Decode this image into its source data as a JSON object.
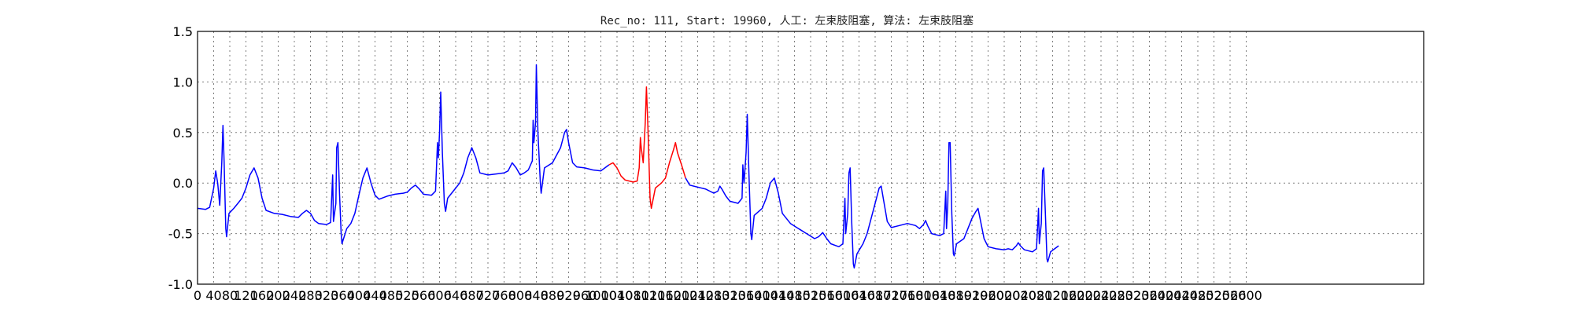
{
  "chart_data": {
    "type": "line",
    "title": "Rec_no: 111, Start: 19960, 人工: 左束肢阻塞, 算法: 左束肢阻塞",
    "xlabel": "",
    "ylabel": "",
    "xlim": [
      0,
      3040
    ],
    "ylim": [
      -1.0,
      1.5
    ],
    "grid": true,
    "x_tick_labels": [
      "0",
      "40",
      "80",
      "120",
      "160",
      "200",
      "240",
      "280",
      "320",
      "360",
      "400",
      "440",
      "480",
      "520",
      "560",
      "600",
      "640",
      "680",
      "720",
      "760",
      "800",
      "840",
      "880",
      "920",
      "960",
      "1000",
      "1040",
      "1080",
      "1120",
      "1160",
      "1200",
      "1240",
      "1280",
      "1320",
      "1360",
      "1400",
      "1440",
      "1480",
      "1520",
      "1560",
      "1600",
      "1640",
      "1680",
      "1720",
      "1760",
      "1800",
      "1840",
      "1880",
      "1920",
      "1960",
      "2000",
      "2040",
      "2080",
      "2120",
      "2160",
      "2200",
      "2240",
      "2280",
      "2320",
      "2360",
      "2400",
      "2440",
      "2480",
      "2520",
      "2560",
      "2600"
    ],
    "y_tick_labels": [
      "-1.0",
      "-0.5",
      "0.0",
      "0.5",
      "1.0",
      "1.5"
    ],
    "y_ticks": [
      -1.0,
      -0.5,
      0.0,
      0.5,
      1.0,
      1.5
    ],
    "series": [
      {
        "color": "#0000ff",
        "points": [
          [
            0,
            -0.25
          ],
          [
            20,
            -0.26
          ],
          [
            30,
            -0.24
          ],
          [
            40,
            -0.05
          ],
          [
            45,
            0.12
          ],
          [
            50,
            0.0
          ],
          [
            55,
            -0.22
          ],
          [
            60,
            0.2
          ],
          [
            63,
            0.57
          ],
          [
            66,
            0.2
          ],
          [
            70,
            -0.45
          ],
          [
            72,
            -0.53
          ],
          [
            78,
            -0.3
          ],
          [
            90,
            -0.25
          ],
          [
            100,
            -0.2
          ],
          [
            110,
            -0.15
          ],
          [
            120,
            -0.05
          ],
          [
            130,
            0.08
          ],
          [
            140,
            0.15
          ],
          [
            150,
            0.05
          ],
          [
            160,
            -0.15
          ],
          [
            170,
            -0.27
          ],
          [
            190,
            -0.3
          ],
          [
            210,
            -0.31
          ],
          [
            230,
            -0.33
          ],
          [
            250,
            -0.34
          ],
          [
            260,
            -0.3
          ],
          [
            270,
            -0.27
          ],
          [
            280,
            -0.3
          ],
          [
            290,
            -0.37
          ],
          [
            300,
            -0.4
          ],
          [
            320,
            -0.41
          ],
          [
            330,
            -0.39
          ],
          [
            335,
            0.08
          ],
          [
            337,
            -0.38
          ],
          [
            343,
            -0.2
          ],
          [
            345,
            0.35
          ],
          [
            348,
            0.4
          ],
          [
            352,
            -0.1
          ],
          [
            356,
            -0.5
          ],
          [
            358,
            -0.6
          ],
          [
            370,
            -0.45
          ],
          [
            380,
            -0.4
          ],
          [
            390,
            -0.3
          ],
          [
            400,
            -0.12
          ],
          [
            410,
            0.05
          ],
          [
            420,
            0.15
          ],
          [
            430,
            0.0
          ],
          [
            440,
            -0.12
          ],
          [
            450,
            -0.16
          ],
          [
            470,
            -0.13
          ],
          [
            490,
            -0.11
          ],
          [
            510,
            -0.1
          ],
          [
            520,
            -0.09
          ],
          [
            530,
            -0.05
          ],
          [
            540,
            -0.02
          ],
          [
            550,
            -0.06
          ],
          [
            560,
            -0.11
          ],
          [
            580,
            -0.12
          ],
          [
            590,
            -0.08
          ],
          [
            595,
            0.4
          ],
          [
            597,
            0.25
          ],
          [
            600,
            0.5
          ],
          [
            603,
            0.9
          ],
          [
            607,
            0.3
          ],
          [
            612,
            -0.2
          ],
          [
            615,
            -0.28
          ],
          [
            620,
            -0.15
          ],
          [
            640,
            -0.05
          ],
          [
            650,
            0.0
          ],
          [
            660,
            0.1
          ],
          [
            670,
            0.25
          ],
          [
            680,
            0.35
          ],
          [
            690,
            0.25
          ],
          [
            700,
            0.1
          ],
          [
            720,
            0.08
          ],
          [
            740,
            0.09
          ],
          [
            760,
            0.1
          ],
          [
            770,
            0.12
          ],
          [
            780,
            0.2
          ],
          [
            790,
            0.15
          ],
          [
            800,
            0.08
          ],
          [
            810,
            0.1
          ],
          [
            820,
            0.13
          ],
          [
            830,
            0.22
          ],
          [
            832,
            0.62
          ],
          [
            834,
            0.4
          ],
          [
            838,
            0.6
          ],
          [
            840,
            1.17
          ],
          [
            844,
            0.5
          ],
          [
            850,
            0.0
          ],
          [
            852,
            -0.1
          ],
          [
            860,
            0.15
          ],
          [
            880,
            0.2
          ],
          [
            900,
            0.35
          ],
          [
            910,
            0.5
          ],
          [
            915,
            0.53
          ],
          [
            920,
            0.4
          ],
          [
            930,
            0.2
          ],
          [
            940,
            0.16
          ],
          [
            960,
            0.15
          ],
          [
            980,
            0.13
          ],
          [
            1000,
            0.12
          ],
          [
            1010,
            0.15
          ],
          [
            1020,
            0.18
          ]
        ]
      },
      {
        "color": "#ff0000",
        "points": [
          [
            1020,
            0.18
          ],
          [
            1030,
            0.2
          ],
          [
            1040,
            0.15
          ],
          [
            1050,
            0.07
          ],
          [
            1060,
            0.03
          ],
          [
            1080,
            0.01
          ],
          [
            1090,
            0.02
          ],
          [
            1095,
            0.15
          ],
          [
            1098,
            0.45
          ],
          [
            1100,
            0.35
          ],
          [
            1105,
            0.2
          ],
          [
            1110,
            0.6
          ],
          [
            1113,
            0.95
          ],
          [
            1117,
            0.5
          ],
          [
            1122,
            -0.15
          ],
          [
            1125,
            -0.25
          ],
          [
            1135,
            -0.05
          ],
          [
            1150,
            0.0
          ],
          [
            1160,
            0.05
          ],
          [
            1170,
            0.2
          ],
          [
            1180,
            0.33
          ],
          [
            1185,
            0.4
          ],
          [
            1190,
            0.3
          ],
          [
            1200,
            0.18
          ],
          [
            1210,
            0.05
          ]
        ]
      },
      {
        "color": "#0000ff",
        "points": [
          [
            1210,
            0.05
          ],
          [
            1220,
            -0.02
          ],
          [
            1240,
            -0.04
          ],
          [
            1260,
            -0.06
          ],
          [
            1270,
            -0.08
          ],
          [
            1280,
            -0.1
          ],
          [
            1290,
            -0.08
          ],
          [
            1295,
            -0.03
          ],
          [
            1300,
            -0.06
          ],
          [
            1310,
            -0.13
          ],
          [
            1320,
            -0.18
          ],
          [
            1340,
            -0.2
          ],
          [
            1350,
            -0.15
          ],
          [
            1352,
            0.18
          ],
          [
            1355,
            0.0
          ],
          [
            1360,
            0.3
          ],
          [
            1363,
            0.68
          ],
          [
            1367,
            0.1
          ],
          [
            1372,
            -0.5
          ],
          [
            1374,
            -0.56
          ],
          [
            1380,
            -0.32
          ],
          [
            1400,
            -0.25
          ],
          [
            1410,
            -0.15
          ],
          [
            1420,
            0.0
          ],
          [
            1430,
            0.05
          ],
          [
            1440,
            -0.1
          ],
          [
            1450,
            -0.3
          ],
          [
            1470,
            -0.4
          ],
          [
            1490,
            -0.45
          ],
          [
            1510,
            -0.5
          ],
          [
            1530,
            -0.55
          ],
          [
            1540,
            -0.53
          ],
          [
            1550,
            -0.49
          ],
          [
            1560,
            -0.55
          ],
          [
            1570,
            -0.6
          ],
          [
            1590,
            -0.63
          ],
          [
            1600,
            -0.6
          ],
          [
            1605,
            -0.15
          ],
          [
            1607,
            -0.5
          ],
          [
            1612,
            -0.3
          ],
          [
            1615,
            0.1
          ],
          [
            1618,
            0.15
          ],
          [
            1622,
            -0.4
          ],
          [
            1626,
            -0.8
          ],
          [
            1628,
            -0.84
          ],
          [
            1635,
            -0.7
          ],
          [
            1650,
            -0.6
          ],
          [
            1660,
            -0.5
          ],
          [
            1670,
            -0.35
          ],
          [
            1680,
            -0.2
          ],
          [
            1690,
            -0.05
          ],
          [
            1695,
            -0.03
          ],
          [
            1700,
            -0.15
          ],
          [
            1710,
            -0.38
          ],
          [
            1720,
            -0.44
          ],
          [
            1740,
            -0.42
          ],
          [
            1760,
            -0.4
          ],
          [
            1780,
            -0.42
          ],
          [
            1790,
            -0.45
          ],
          [
            1800,
            -0.41
          ],
          [
            1805,
            -0.37
          ],
          [
            1810,
            -0.42
          ],
          [
            1820,
            -0.5
          ],
          [
            1840,
            -0.52
          ],
          [
            1850,
            -0.5
          ],
          [
            1855,
            -0.08
          ],
          [
            1857,
            -0.45
          ],
          [
            1860,
            -0.2
          ],
          [
            1863,
            0.4
          ],
          [
            1866,
            0.4
          ],
          [
            1870,
            -0.3
          ],
          [
            1874,
            -0.7
          ],
          [
            1876,
            -0.72
          ],
          [
            1882,
            -0.6
          ],
          [
            1900,
            -0.55
          ],
          [
            1910,
            -0.45
          ],
          [
            1920,
            -0.35
          ],
          [
            1930,
            -0.28
          ],
          [
            1935,
            -0.25
          ],
          [
            1940,
            -0.35
          ],
          [
            1950,
            -0.55
          ],
          [
            1960,
            -0.63
          ],
          [
            1980,
            -0.65
          ],
          [
            2000,
            -0.66
          ],
          [
            2010,
            -0.65
          ],
          [
            2020,
            -0.66
          ],
          [
            2030,
            -0.62
          ],
          [
            2035,
            -0.59
          ],
          [
            2040,
            -0.62
          ],
          [
            2050,
            -0.66
          ],
          [
            2070,
            -0.68
          ],
          [
            2080,
            -0.65
          ],
          [
            2085,
            -0.25
          ],
          [
            2087,
            -0.6
          ],
          [
            2092,
            -0.4
          ],
          [
            2095,
            0.12
          ],
          [
            2098,
            0.15
          ],
          [
            2102,
            -0.3
          ],
          [
            2106,
            -0.75
          ],
          [
            2108,
            -0.78
          ],
          [
            2115,
            -0.68
          ],
          [
            2125,
            -0.65
          ],
          [
            2135,
            -0.62
          ]
        ]
      }
    ]
  }
}
